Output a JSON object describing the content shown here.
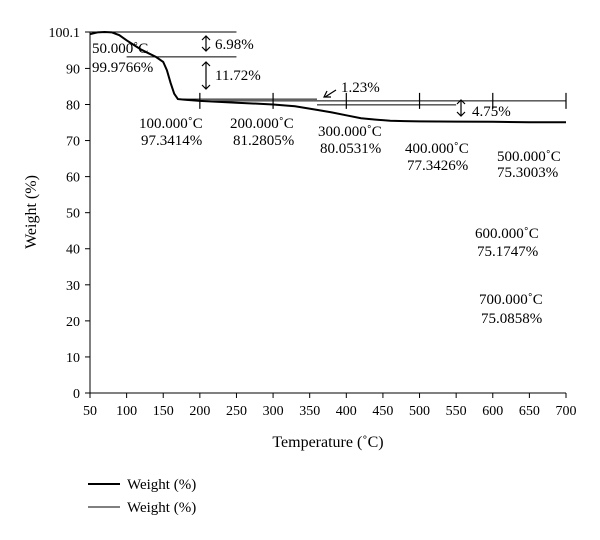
{
  "chart_data": {
    "type": "line",
    "xlabel": "Temperature (˚C)",
    "ylabel": "Weight (%)",
    "xlim": [
      50,
      700
    ],
    "ylim": [
      0,
      100.1
    ],
    "xticks": [
      50,
      100,
      150,
      200,
      250,
      300,
      350,
      400,
      450,
      500,
      550,
      600,
      650,
      700
    ],
    "yticks": [
      0,
      10,
      20,
      30,
      40,
      50,
      60,
      70,
      80,
      90,
      100.1
    ],
    "legend_position": "bottom-left",
    "grid": false,
    "series": [
      {
        "name": "Weight (%)",
        "style": "thick",
        "color": "#000000",
        "x": [
          50,
          60,
          70,
          80,
          90,
          100,
          110,
          120,
          130,
          140,
          150,
          155,
          160,
          165,
          170,
          180,
          200,
          250,
          300,
          330,
          360,
          380,
          400,
          420,
          440,
          460,
          480,
          500,
          550,
          600,
          650,
          700
        ],
        "y": [
          99.5,
          100,
          100.1,
          100,
          99.2,
          97.8,
          96.5,
          95.2,
          94.2,
          93.2,
          91.8,
          89.5,
          86,
          83,
          81.5,
          81.3,
          81.0,
          80.5,
          80.0,
          79.5,
          78.5,
          77.8,
          77.0,
          76.2,
          75.8,
          75.5,
          75.4,
          75.3,
          75.25,
          75.2,
          75.1,
          75.1
        ]
      },
      {
        "name": "Weight (%)",
        "style": "thin",
        "color": "#000000"
      }
    ],
    "markers": {
      "x": [
        200,
        300,
        400,
        500,
        600,
        700
      ],
      "y": 81
    },
    "reference_lines": [
      {
        "x1": 50,
        "x2": 250,
        "y": 100.1
      },
      {
        "x1": 100,
        "x2": 250,
        "y": 93.2
      },
      {
        "x1": 170,
        "x2": 360,
        "y": 81.5
      },
      {
        "x1": 360,
        "x2": 550,
        "y": 79.9
      }
    ],
    "change_labels": [
      "6.98%",
      "11.72%",
      "1.23%",
      "4.75%"
    ],
    "point_labels": [
      {
        "temp": "50.000˚C",
        "weight": "99.9766%"
      },
      {
        "temp": "100.000˚C",
        "weight": "97.3414%"
      },
      {
        "temp": "200.000˚C",
        "weight": "81.2805%"
      },
      {
        "temp": "300.000˚C",
        "weight": "80.0531%"
      },
      {
        "temp": "400.000˚C",
        "weight": "77.3426%"
      },
      {
        "temp": "500.000˚C",
        "weight": "75.3003%"
      },
      {
        "temp": "600.000˚C",
        "weight": "75.1747%"
      },
      {
        "temp": "700.000˚C",
        "weight": "75.0858%"
      }
    ]
  }
}
